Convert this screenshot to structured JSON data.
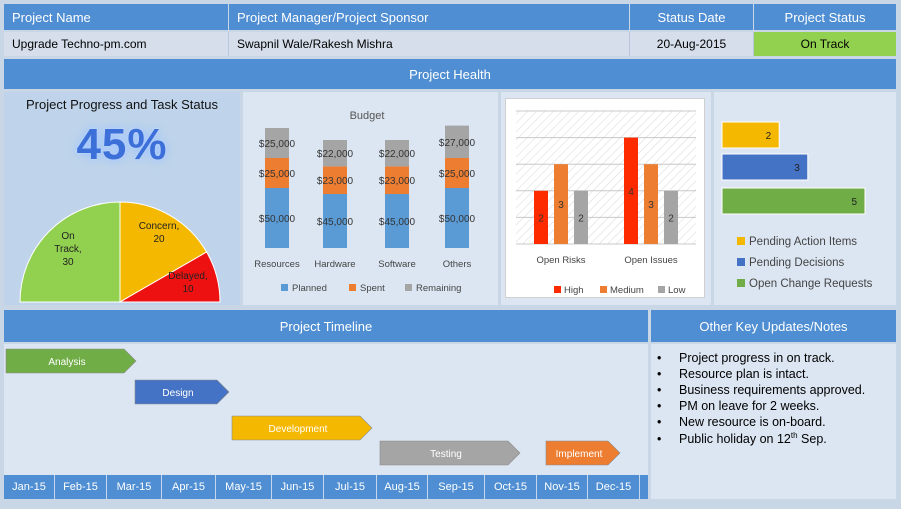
{
  "header": {
    "project_name_label": "Project Name",
    "manager_label": "Project Manager/Project Sponsor",
    "status_date_label": "Status Date",
    "status_label": "Project Status"
  },
  "info": {
    "project_name": "Upgrade Techno-pm.com",
    "manager": "Swapnil Wale/Rakesh Mishra",
    "status_date": "20-Aug-2015",
    "status": "On Track",
    "status_color": "#92d050"
  },
  "health": {
    "title": "Project Health",
    "progress": {
      "title": "Project Progress and Task Status",
      "percent_text": "45%",
      "percent": 45,
      "pie": [
        {
          "label": "On Track",
          "value": 30,
          "color": "#92d050"
        },
        {
          "label": "Concern",
          "value": 20,
          "color": "#f5b800"
        },
        {
          "label": "Delayed",
          "value": 10,
          "color": "#ee1111"
        }
      ]
    }
  },
  "chart_data": [
    {
      "type": "bar",
      "title": "Budget",
      "categories": [
        "Resources",
        "Hardware",
        "Software",
        "Others"
      ],
      "series": [
        {
          "name": "Planned",
          "values": [
            50000,
            45000,
            45000,
            50000
          ],
          "labels": [
            "$50,000",
            "$45,000",
            "$45,000",
            "$50,000"
          ],
          "color": "#5b9bd5"
        },
        {
          "name": "Spent",
          "values": [
            25000,
            23000,
            23000,
            25000
          ],
          "labels": [
            "$25,000",
            "$23,000",
            "$23,000",
            "$25,000"
          ],
          "color": "#ed7d31"
        },
        {
          "name": "Remaining",
          "values": [
            25000,
            22000,
            22000,
            27000
          ],
          "labels": [
            "$25,000",
            "$22,000",
            "$22,000",
            "$27,000"
          ],
          "color": "#a5a5a5"
        }
      ],
      "stacked": true
    },
    {
      "type": "bar",
      "categories": [
        "Open Risks",
        "Open Issues"
      ],
      "series": [
        {
          "name": "High",
          "values": [
            2,
            4
          ],
          "color": "#ff2b00"
        },
        {
          "name": "Medium",
          "values": [
            3,
            3
          ],
          "color": "#ed7d31"
        },
        {
          "name": "Low",
          "values": [
            2,
            2
          ],
          "color": "#a5a5a5"
        }
      ],
      "ylim": [
        0,
        5
      ]
    },
    {
      "type": "bar",
      "orientation": "horizontal",
      "categories": [
        "Pending Action Items",
        "Pending Decisions",
        "Open Change Requests"
      ],
      "values": [
        2,
        3,
        5
      ],
      "colors": [
        "#f5b800",
        "#4472c4",
        "#70ad47"
      ],
      "xlim": [
        0,
        5
      ]
    }
  ],
  "timeline": {
    "title": "Project Timeline",
    "months": [
      "Jan-15",
      "Feb-15",
      "Mar-15",
      "Apr-15",
      "May-15",
      "Jun-15",
      "Jul-15",
      "Aug-15",
      "Sep-15",
      "Oct-15",
      "Nov-15",
      "Dec-15"
    ],
    "phases": [
      {
        "label": "Analysis",
        "color": "#70ad47",
        "text_color": "#ffffff"
      },
      {
        "label": "Design",
        "color": "#4472c4",
        "text_color": "#ffffff"
      },
      {
        "label": "Development",
        "color": "#f5b800",
        "text_color": "#ffffff"
      },
      {
        "label": "Testing",
        "color": "#a5a5a5",
        "text_color": "#ffffff"
      },
      {
        "label": "Implement",
        "color": "#ed7d31",
        "text_color": "#ffffff"
      }
    ]
  },
  "notes": {
    "title": "Other Key Updates/Notes",
    "items": [
      "Project progress in on track.",
      "Resource plan is intact.",
      "Business requirements approved.",
      "PM on leave for 2 weeks.",
      "New resource is on-board."
    ],
    "last_prefix": "Public holiday on 12",
    "last_sup": "th",
    "last_suffix": " Sep."
  }
}
